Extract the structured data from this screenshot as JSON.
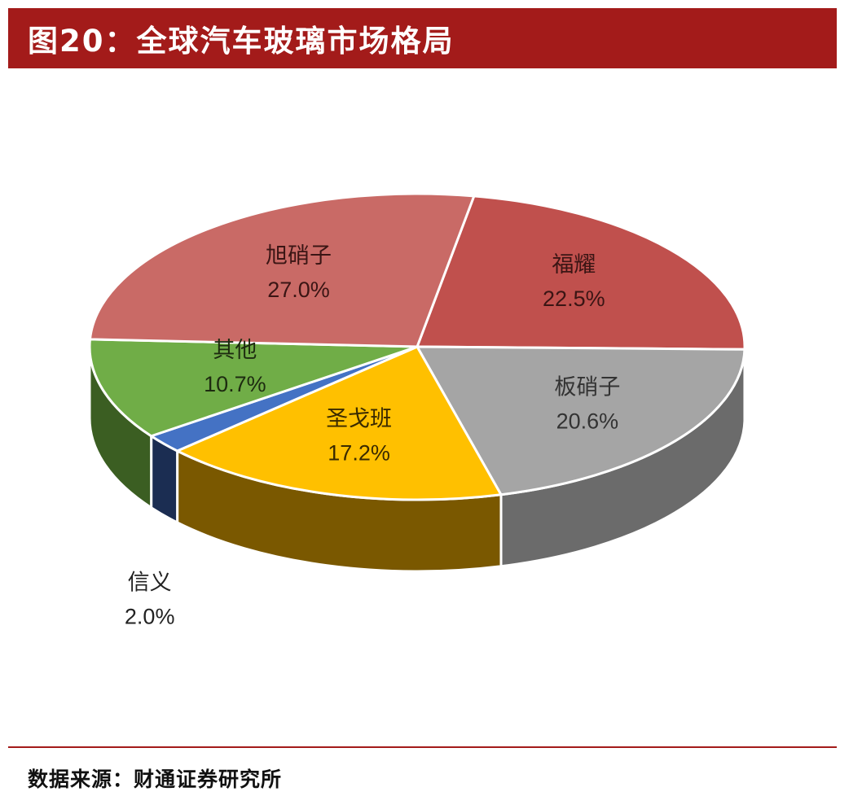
{
  "title": "图20：全球汽车玻璃市场格局",
  "source": "数据来源：财通证券研究所",
  "chart_data": {
    "type": "pie",
    "title": "",
    "series": [
      {
        "values": [
          22.5,
          20.6,
          17.2,
          2.0,
          10.7,
          27.0
        ],
        "labels": [
          "22.5%",
          "20.6%",
          "17.2%",
          "2.0%",
          "10.7%",
          "27.0%"
        ]
      }
    ],
    "categories": [
      "福耀",
      "板硝子",
      "圣戈班",
      "信义",
      "其他",
      "旭硝子"
    ],
    "colors": [
      "#c0504d",
      "#a5a5a5",
      "#ffc000",
      "#4472c4",
      "#70ad47",
      "#c96a66"
    ],
    "side_colors": [
      "#8c3431",
      "#6b6b6b",
      "#7a5800",
      "#1b2d52",
      "#3b5e22",
      "#8f4642"
    ],
    "style": "3d"
  }
}
